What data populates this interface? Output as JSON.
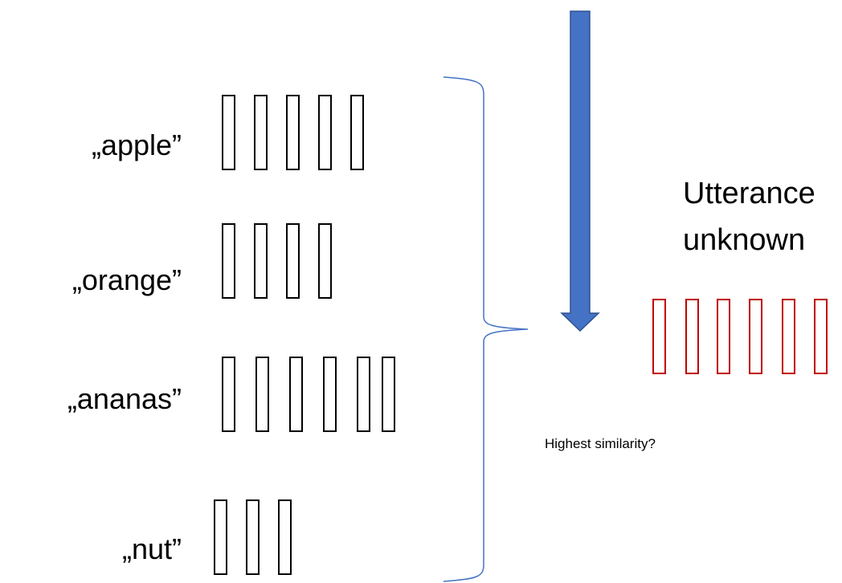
{
  "templates": [
    {
      "label": "„apple”",
      "frame_count": 5
    },
    {
      "label": "„orange”",
      "frame_count": 4
    },
    {
      "label": "„ananas”",
      "frame_count": 6
    },
    {
      "label": "„nut”",
      "frame_count": 3
    }
  ],
  "utterance": {
    "line1": "Utterance",
    "line2": "unknown",
    "frame_count": 6
  },
  "question": "Highest similarity?",
  "colors": {
    "template_frame": "#000000",
    "unknown_frame": "#c00000",
    "arrow_fill": "#4472c4",
    "arrow_stroke": "#2f528f",
    "brace": "#4472c4"
  }
}
